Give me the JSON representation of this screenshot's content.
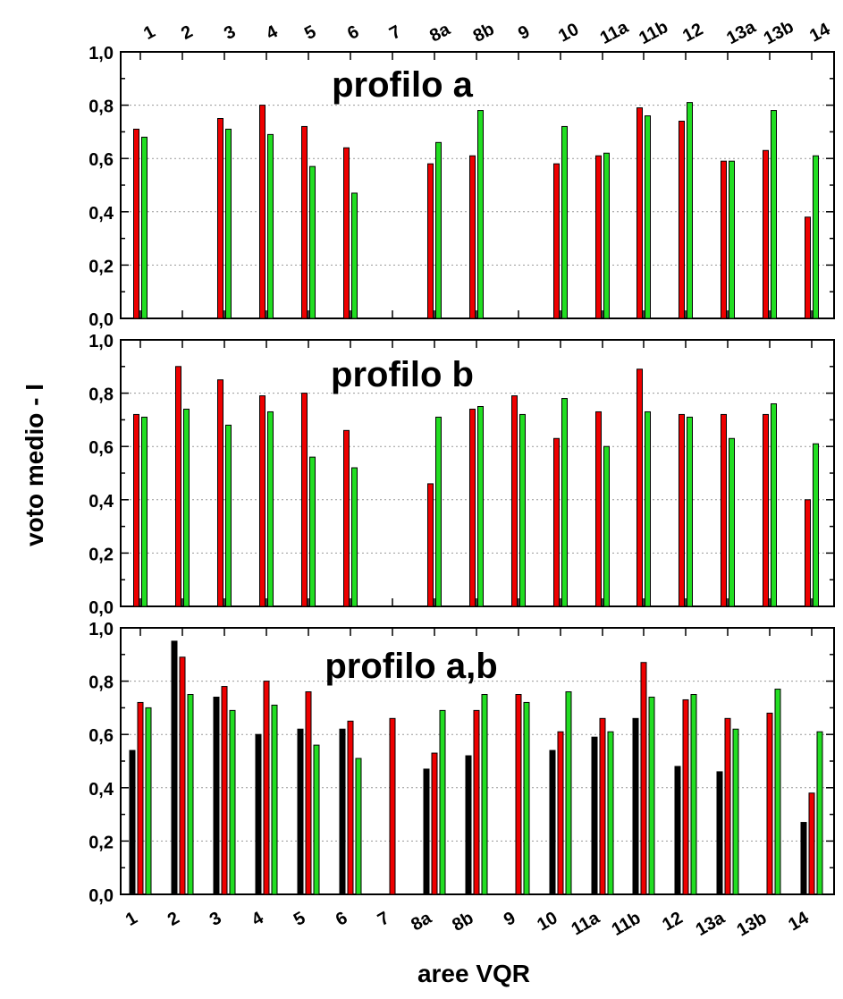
{
  "chart_data": {
    "type": "bar",
    "ylabel": "voto medio - I",
    "xlabel": "aree VQR",
    "categories": [
      "1",
      "2",
      "3",
      "4",
      "5",
      "6",
      "7",
      "8a",
      "8b",
      "9",
      "10",
      "11a",
      "11b",
      "12",
      "13a",
      "13b",
      "14"
    ],
    "yticks": [
      "0,0",
      "0,2",
      "0,4",
      "0,6",
      "0,8",
      "1,0"
    ],
    "ylim": [
      0,
      1
    ],
    "colors": {
      "black": "#000000",
      "red": "#ee0000",
      "green": "#22dd22"
    },
    "grid": "horizontal dotted",
    "panels": [
      {
        "title": "profilo a",
        "series": [
          {
            "color": "red",
            "values": [
              0.71,
              null,
              0.75,
              0.8,
              0.72,
              0.64,
              null,
              0.58,
              0.61,
              null,
              0.58,
              0.61,
              0.79,
              0.74,
              0.59,
              0.63,
              0.38
            ]
          },
          {
            "color": "green",
            "values": [
              0.68,
              null,
              0.71,
              0.69,
              0.57,
              0.47,
              null,
              0.66,
              0.78,
              null,
              0.72,
              0.62,
              0.76,
              0.81,
              0.59,
              0.78,
              0.61
            ]
          }
        ]
      },
      {
        "title": "profilo b",
        "series": [
          {
            "color": "red",
            "values": [
              0.72,
              0.9,
              0.85,
              0.79,
              0.8,
              0.66,
              null,
              0.46,
              0.74,
              0.79,
              0.63,
              0.73,
              0.89,
              0.72,
              0.72,
              0.72,
              0.4
            ]
          },
          {
            "color": "green",
            "values": [
              0.71,
              0.74,
              0.68,
              0.73,
              0.56,
              0.52,
              null,
              0.71,
              0.75,
              0.72,
              0.78,
              0.6,
              0.73,
              0.71,
              0.63,
              0.76,
              0.61
            ]
          }
        ]
      },
      {
        "title": "profilo a,b",
        "series": [
          {
            "color": "black",
            "values": [
              0.54,
              0.95,
              0.74,
              0.6,
              0.62,
              0.62,
              null,
              0.47,
              0.52,
              null,
              0.54,
              0.59,
              0.66,
              0.48,
              0.46,
              null,
              0.27
            ]
          },
          {
            "color": "red",
            "values": [
              0.72,
              0.89,
              0.78,
              0.8,
              0.76,
              0.65,
              0.66,
              0.53,
              0.69,
              0.75,
              0.61,
              0.66,
              0.87,
              0.73,
              0.66,
              0.68,
              0.38
            ]
          },
          {
            "color": "green",
            "values": [
              0.7,
              0.75,
              0.69,
              0.71,
              0.56,
              0.51,
              null,
              0.69,
              0.75,
              0.72,
              0.76,
              0.61,
              0.74,
              0.75,
              0.62,
              0.77,
              0.61
            ]
          }
        ]
      }
    ]
  }
}
